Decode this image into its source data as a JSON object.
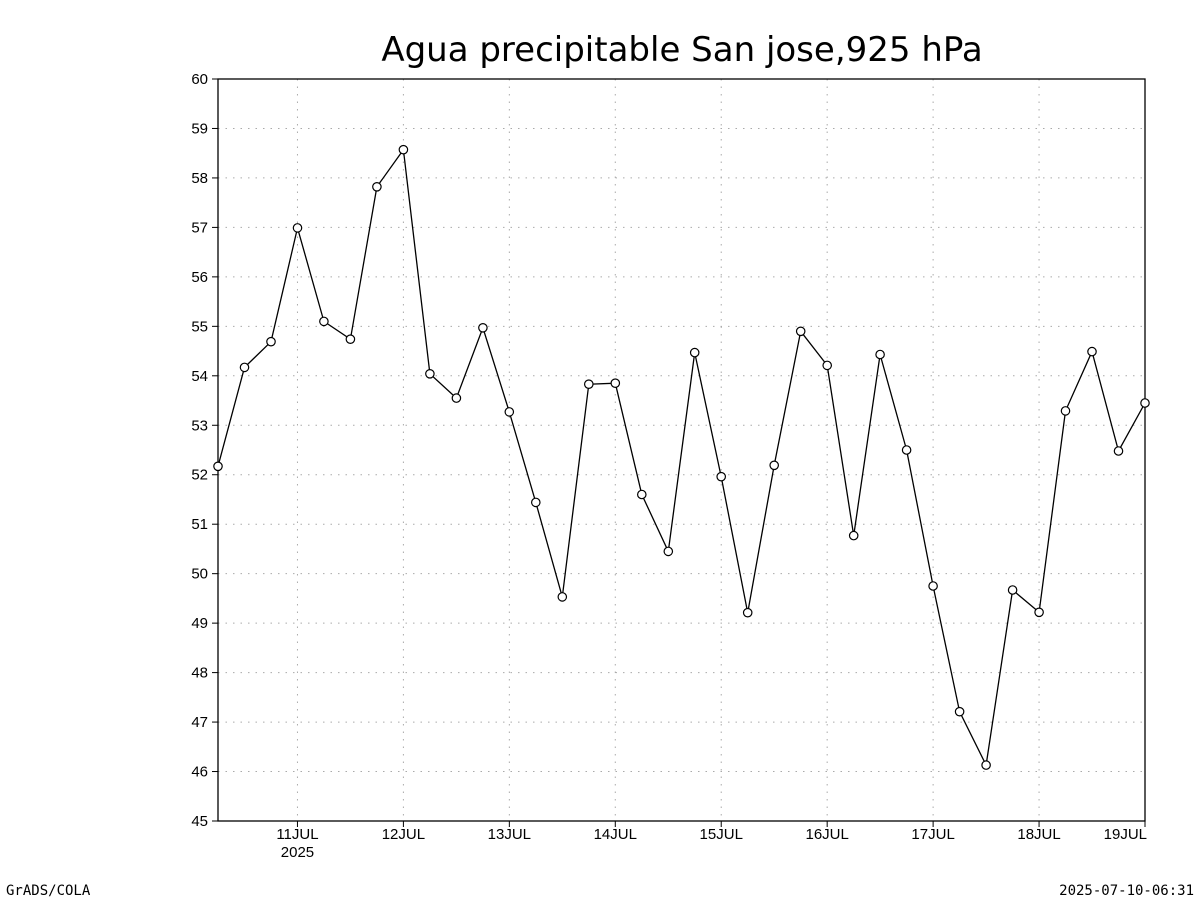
{
  "footer": {
    "left": "GrADS/COLA",
    "right": "2025-07-10-06:31"
  },
  "chart_data": {
    "type": "line",
    "title": "Agua precipitable San jose,925 hPa",
    "xlabel": "",
    "ylabel": "",
    "ylim": [
      45,
      60
    ],
    "y_ticks": [
      "45",
      "46",
      "47",
      "48",
      "49",
      "50",
      "51",
      "52",
      "53",
      "54",
      "55",
      "56",
      "57",
      "58",
      "59",
      "60"
    ],
    "x_range": [
      "2025-07-10 06:00",
      "2025-07-19 00:00"
    ],
    "x_ticks": [
      {
        "t": "2025-07-11 00:00",
        "label": "11JUL",
        "sublabel": "2025"
      },
      {
        "t": "2025-07-12 00:00",
        "label": "12JUL"
      },
      {
        "t": "2025-07-13 00:00",
        "label": "13JUL"
      },
      {
        "t": "2025-07-14 00:00",
        "label": "14JUL"
      },
      {
        "t": "2025-07-15 00:00",
        "label": "15JUL"
      },
      {
        "t": "2025-07-16 00:00",
        "label": "16JUL"
      },
      {
        "t": "2025-07-17 00:00",
        "label": "17JUL"
      },
      {
        "t": "2025-07-18 00:00",
        "label": "18JUL"
      },
      {
        "t": "2025-07-19 00:00",
        "label": "19JUL"
      }
    ],
    "grid": true,
    "marker": "open-circle",
    "series": [
      {
        "x": [
          "2025-07-10 06:00",
          "2025-07-10 12:00",
          "2025-07-10 18:00",
          "2025-07-11 00:00",
          "2025-07-11 06:00",
          "2025-07-11 12:00",
          "2025-07-11 18:00",
          "2025-07-12 00:00",
          "2025-07-12 06:00",
          "2025-07-12 12:00",
          "2025-07-12 18:00",
          "2025-07-13 00:00",
          "2025-07-13 06:00",
          "2025-07-13 12:00",
          "2025-07-13 18:00",
          "2025-07-14 00:00",
          "2025-07-14 06:00",
          "2025-07-14 12:00",
          "2025-07-14 18:00",
          "2025-07-15 00:00",
          "2025-07-15 06:00",
          "2025-07-15 12:00",
          "2025-07-15 18:00",
          "2025-07-16 00:00",
          "2025-07-16 06:00",
          "2025-07-16 12:00",
          "2025-07-16 18:00",
          "2025-07-17 00:00",
          "2025-07-17 06:00",
          "2025-07-17 12:00",
          "2025-07-17 18:00",
          "2025-07-18 00:00",
          "2025-07-18 06:00",
          "2025-07-18 12:00",
          "2025-07-18 18:00",
          "2025-07-19 00:00"
        ],
        "values": [
          52.17,
          54.17,
          54.69,
          56.99,
          55.1,
          54.74,
          57.82,
          58.57,
          54.04,
          53.55,
          54.97,
          53.27,
          51.44,
          49.53,
          53.83,
          53.85,
          51.6,
          50.45,
          54.47,
          51.96,
          49.21,
          52.19,
          54.9,
          54.21,
          50.77,
          54.43,
          52.5,
          49.75,
          47.21,
          46.13,
          49.67,
          49.22,
          53.29,
          54.49,
          52.48,
          53.45
        ]
      }
    ],
    "colors": {
      "line": "#000000",
      "grid": "#aaaaaa",
      "marker_fill": "#ffffff"
    }
  }
}
